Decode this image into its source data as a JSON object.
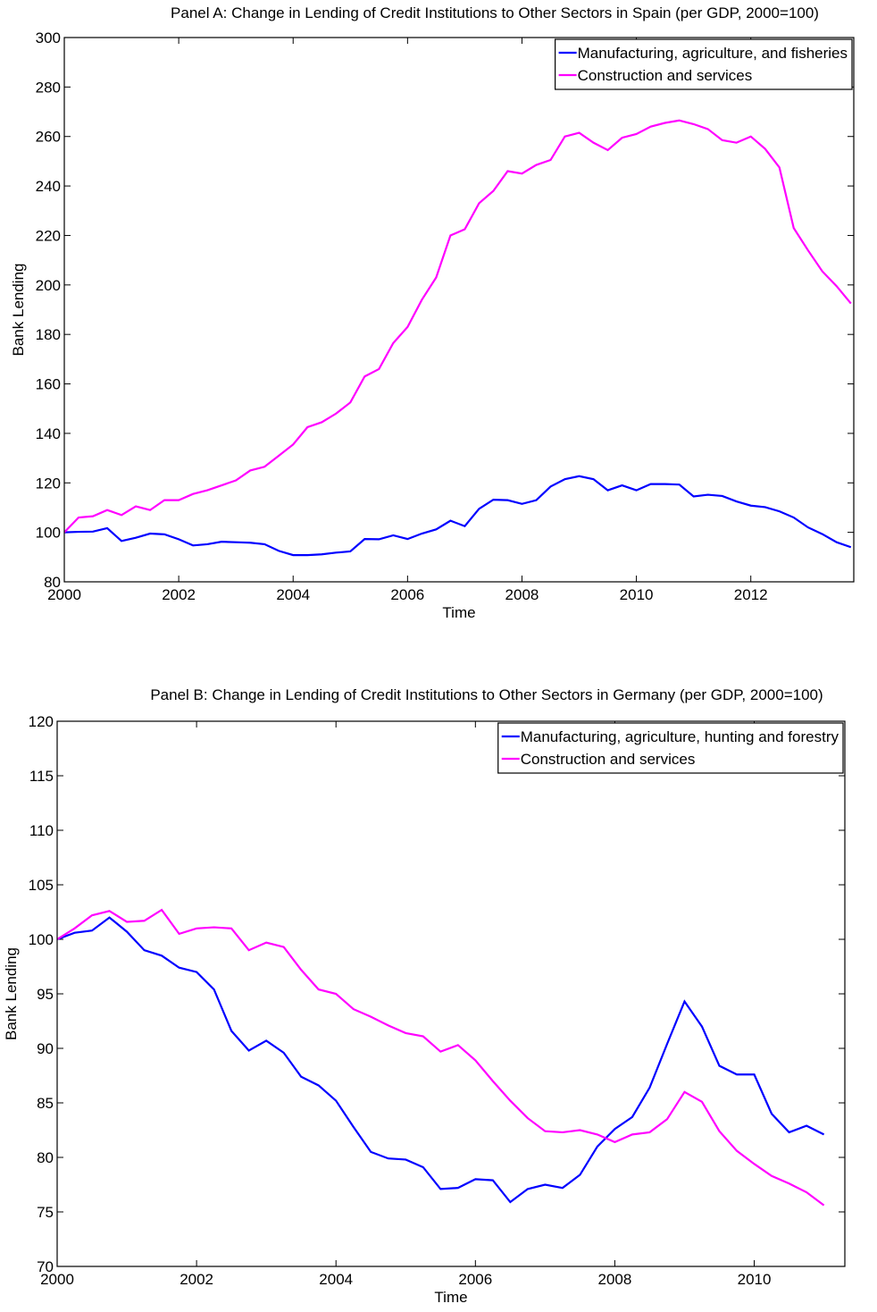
{
  "chart_data": [
    {
      "type": "line",
      "title": "Panel A: Change in Lending of Credit Institutions to Other Sectors in Spain (per GDP, 2000=100)",
      "x_label": "Time",
      "y_label": "Bank Lending",
      "x": [
        2000,
        2000.25,
        2000.5,
        2000.75,
        2001,
        2001.25,
        2001.5,
        2001.75,
        2002,
        2002.25,
        2002.5,
        2002.75,
        2003,
        2003.25,
        2003.5,
        2003.75,
        2004,
        2004.25,
        2004.5,
        2004.75,
        2005,
        2005.25,
        2005.5,
        2005.75,
        2006,
        2006.25,
        2006.5,
        2006.75,
        2007,
        2007.25,
        2007.5,
        2007.75,
        2008,
        2008.25,
        2008.5,
        2008.75,
        2009,
        2009.25,
        2009.5,
        2009.75,
        2010,
        2010.25,
        2010.5,
        2010.75,
        2011,
        2011.25,
        2011.5,
        2011.75,
        2012,
        2012.25,
        2012.5,
        2012.75,
        2013,
        2013.25,
        2013.5,
        2013.75
      ],
      "series": [
        {
          "name": "Manufacturing, agriculture, and fisheries",
          "color": "#0000ff",
          "values": [
            100,
            100.2,
            100.3,
            101.7,
            96.5,
            97.8,
            99.5,
            99.2,
            97.2,
            94.7,
            95.2,
            96.2,
            96,
            95.8,
            95.2,
            92.5,
            90.8,
            90.8,
            91.1,
            91.8,
            92.3,
            97.3,
            97.2,
            98.8,
            97.3,
            99.5,
            101.2,
            104.7,
            102.5,
            109.5,
            113.2,
            113,
            111.5,
            113,
            118.5,
            121.5,
            122.7,
            121.5,
            117,
            119,
            117,
            119.5,
            119.5,
            119.3,
            114.5,
            115.2,
            114.7,
            112.5,
            110.8,
            110.2,
            108.5,
            106,
            102,
            99.3,
            96,
            94
          ]
        },
        {
          "name": "Construction and services",
          "color": "#ff00ff",
          "values": [
            100,
            106,
            106.5,
            109,
            107,
            110.5,
            109,
            113,
            113,
            115.5,
            117,
            119,
            121,
            125,
            126.5,
            131,
            135.5,
            142.5,
            144.5,
            148,
            152.5,
            163,
            166,
            176.5,
            183,
            194,
            203,
            220,
            222.5,
            233,
            238,
            246,
            245,
            248.5,
            250.5,
            260,
            261.5,
            257.5,
            254.5,
            259.5,
            261,
            264,
            265.5,
            266.5,
            265,
            263,
            258.5,
            257.5,
            260,
            255,
            247.5,
            223,
            214,
            205.5,
            199.5,
            192.5
          ]
        }
      ],
      "xlim": [
        2000,
        2013.8
      ],
      "xticks": [
        2000,
        2002,
        2004,
        2006,
        2008,
        2010,
        2012
      ],
      "ylim": [
        80,
        300
      ],
      "yticks": [
        80,
        100,
        120,
        140,
        160,
        180,
        200,
        220,
        240,
        260,
        280,
        300
      ],
      "grid": false,
      "legend": "upper right"
    },
    {
      "type": "line",
      "title": "Panel B: Change in Lending of Credit Institutions to Other Sectors in Germany (per GDP, 2000=100)",
      "x_label": "Time",
      "y_label": "Bank Lending",
      "x": [
        2000,
        2000.25,
        2000.5,
        2000.75,
        2001,
        2001.25,
        2001.5,
        2001.75,
        2002,
        2002.25,
        2002.5,
        2002.75,
        2003,
        2003.25,
        2003.5,
        2003.75,
        2004,
        2004.25,
        2004.5,
        2004.75,
        2005,
        2005.25,
        2005.5,
        2005.75,
        2006,
        2006.25,
        2006.5,
        2006.75,
        2007,
        2007.25,
        2007.5,
        2007.75,
        2008,
        2008.25,
        2008.5,
        2008.75,
        2009,
        2009.25,
        2009.5,
        2009.75,
        2010,
        2010.25,
        2010.5,
        2010.75,
        2011
      ],
      "series": [
        {
          "name": "Manufacturing, agriculture, hunting and forestry",
          "color": "#0000ff",
          "values": [
            100,
            100.6,
            100.8,
            102,
            100.7,
            99,
            98.5,
            97.4,
            97,
            95.4,
            91.6,
            89.8,
            90.7,
            89.6,
            87.4,
            86.6,
            85.2,
            82.8,
            80.5,
            79.9,
            79.8,
            79.1,
            77.1,
            77.2,
            78,
            77.9,
            75.9,
            77.1,
            77.5,
            77.2,
            78.4,
            81,
            82.6,
            83.7,
            86.4,
            90.4,
            94.3,
            92,
            88.4,
            87.6,
            87.6,
            84,
            82.3,
            82.9,
            82.1
          ]
        },
        {
          "name": "Construction and services",
          "color": "#ff00ff",
          "values": [
            100,
            101,
            102.2,
            102.6,
            101.6,
            101.7,
            102.7,
            100.5,
            101,
            101.1,
            101,
            99,
            99.7,
            99.3,
            97.2,
            95.4,
            95,
            93.6,
            92.9,
            92.1,
            91.4,
            91.1,
            89.7,
            90.3,
            88.9,
            87,
            85.2,
            83.6,
            82.4,
            82.3,
            82.5,
            82.1,
            81.4,
            82.1,
            82.3,
            83.5,
            86,
            85.1,
            82.4,
            80.6,
            79.4,
            78.3,
            77.6,
            76.8,
            75.6
          ]
        }
      ],
      "xlim": [
        2000,
        2011.3
      ],
      "xticks": [
        2000,
        2002,
        2004,
        2006,
        2008,
        2010
      ],
      "ylim": [
        70,
        120
      ],
      "yticks": [
        70,
        75,
        80,
        85,
        90,
        95,
        100,
        105,
        110,
        115,
        120
      ],
      "grid": false,
      "legend": "upper right"
    }
  ]
}
